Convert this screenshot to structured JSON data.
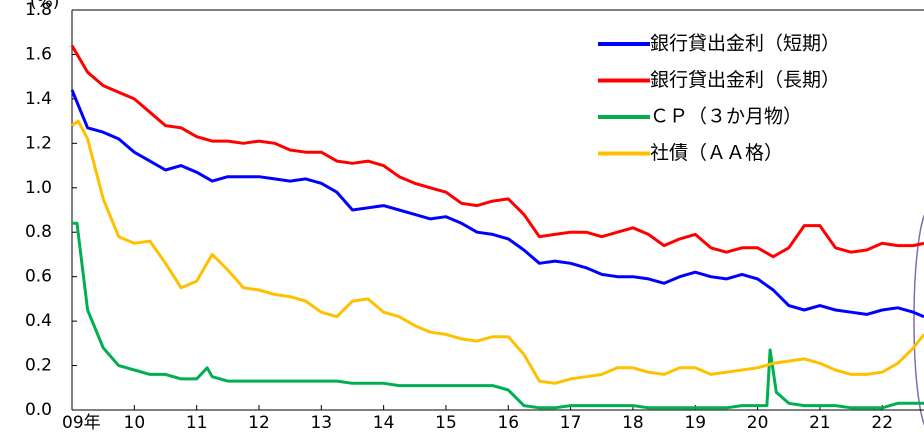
{
  "chart_data": {
    "type": "line",
    "y_label": "(%)",
    "xlim": [
      2009,
      2022.67
    ],
    "ylim": [
      0,
      1.8
    ],
    "yticks": [
      {
        "value": 0,
        "label": "0.0"
      },
      0.2,
      0.4,
      0.6,
      0.8,
      {
        "value": 1,
        "label": "1.0"
      },
      1.2,
      1.4,
      1.6,
      1.8
    ],
    "xticks": [
      {
        "value": 2009,
        "label": "09年"
      },
      {
        "value": 2010,
        "label": "10"
      },
      {
        "value": 2011,
        "label": "11"
      },
      {
        "value": 2012,
        "label": "12"
      },
      {
        "value": 2013,
        "label": "13"
      },
      {
        "value": 2014,
        "label": "14"
      },
      {
        "value": 2015,
        "label": "15"
      },
      {
        "value": 2016,
        "label": "16"
      },
      {
        "value": 2017,
        "label": "17"
      },
      {
        "value": 2018,
        "label": "18"
      },
      {
        "value": 2019,
        "label": "19"
      },
      {
        "value": 2020,
        "label": "20"
      },
      {
        "value": 2021,
        "label": "21"
      },
      {
        "value": 2022,
        "label": "22"
      }
    ],
    "legend": "upper right",
    "series": [
      {
        "name": "銀行貸出金利（短期）",
        "color": "#0000ff",
        "x": [
          2009,
          2009.25,
          2009.5,
          2009.75,
          2010,
          2010.25,
          2010.5,
          2010.75,
          2011,
          2011.25,
          2011.5,
          2011.75,
          2012,
          2012.25,
          2012.5,
          2012.75,
          2013,
          2013.25,
          2013.5,
          2013.75,
          2014,
          2014.25,
          2014.5,
          2014.75,
          2015,
          2015.25,
          2015.5,
          2015.75,
          2016,
          2016.25,
          2016.5,
          2016.75,
          2017,
          2017.25,
          2017.5,
          2017.75,
          2018,
          2018.25,
          2018.5,
          2018.75,
          2019,
          2019.25,
          2019.5,
          2019.75,
          2020,
          2020.25,
          2020.5,
          2020.75,
          2021,
          2021.25,
          2021.5,
          2021.75,
          2022,
          2022.25,
          2022.5,
          2022.67
        ],
        "values": [
          1.44,
          1.27,
          1.25,
          1.22,
          1.16,
          1.12,
          1.08,
          1.1,
          1.07,
          1.03,
          1.05,
          1.05,
          1.05,
          1.04,
          1.03,
          1.04,
          1.02,
          0.98,
          0.9,
          0.91,
          0.92,
          0.9,
          0.88,
          0.86,
          0.87,
          0.84,
          0.8,
          0.79,
          0.77,
          0.72,
          0.66,
          0.67,
          0.66,
          0.64,
          0.61,
          0.6,
          0.6,
          0.59,
          0.57,
          0.6,
          0.62,
          0.6,
          0.59,
          0.61,
          0.59,
          0.54,
          0.47,
          0.45,
          0.47,
          0.45,
          0.44,
          0.43,
          0.45,
          0.46,
          0.44,
          0.42
        ]
      },
      {
        "name": "銀行貸出金利（長期）",
        "color": "#ff0000",
        "x": [
          2009,
          2009.25,
          2009.5,
          2009.75,
          2010,
          2010.25,
          2010.5,
          2010.75,
          2011,
          2011.25,
          2011.5,
          2011.75,
          2012,
          2012.25,
          2012.5,
          2012.75,
          2013,
          2013.25,
          2013.5,
          2013.75,
          2014,
          2014.25,
          2014.5,
          2014.75,
          2015,
          2015.25,
          2015.5,
          2015.75,
          2016,
          2016.25,
          2016.5,
          2016.75,
          2017,
          2017.25,
          2017.5,
          2017.75,
          2018,
          2018.25,
          2018.5,
          2018.75,
          2019,
          2019.25,
          2019.5,
          2019.75,
          2020,
          2020.25,
          2020.5,
          2020.75,
          2021,
          2021.25,
          2021.5,
          2021.75,
          2022,
          2022.25,
          2022.5,
          2022.67
        ],
        "values": [
          1.64,
          1.52,
          1.46,
          1.43,
          1.4,
          1.34,
          1.28,
          1.27,
          1.23,
          1.21,
          1.21,
          1.2,
          1.21,
          1.2,
          1.17,
          1.16,
          1.16,
          1.12,
          1.11,
          1.12,
          1.1,
          1.05,
          1.02,
          1.0,
          0.98,
          0.93,
          0.92,
          0.94,
          0.95,
          0.88,
          0.78,
          0.79,
          0.8,
          0.8,
          0.78,
          0.8,
          0.82,
          0.79,
          0.74,
          0.77,
          0.79,
          0.73,
          0.71,
          0.73,
          0.73,
          0.69,
          0.73,
          0.83,
          0.83,
          0.73,
          0.71,
          0.72,
          0.75,
          0.74,
          0.74,
          0.75
        ]
      },
      {
        "name": "ＣＰ（３か月物）",
        "color": "#00b050",
        "x": [
          2009,
          2009.08,
          2009.25,
          2009.5,
          2009.75,
          2010,
          2010.25,
          2010.5,
          2010.75,
          2011,
          2011.17,
          2011.25,
          2011.5,
          2011.75,
          2012,
          2012.25,
          2012.5,
          2012.75,
          2013,
          2013.25,
          2013.5,
          2013.75,
          2014,
          2014.25,
          2014.5,
          2014.75,
          2015,
          2015.25,
          2015.5,
          2015.75,
          2016,
          2016.25,
          2016.5,
          2016.75,
          2017,
          2017.25,
          2017.5,
          2017.75,
          2018,
          2018.25,
          2018.5,
          2018.75,
          2019,
          2019.25,
          2019.5,
          2019.75,
          2020,
          2020.15,
          2020.2,
          2020.3,
          2020.5,
          2020.75,
          2021,
          2021.25,
          2021.5,
          2021.75,
          2022,
          2022.25,
          2022.5,
          2022.67
        ],
        "values": [
          0.84,
          0.84,
          0.45,
          0.28,
          0.2,
          0.18,
          0.16,
          0.16,
          0.14,
          0.14,
          0.19,
          0.15,
          0.13,
          0.13,
          0.13,
          0.13,
          0.13,
          0.13,
          0.13,
          0.13,
          0.12,
          0.12,
          0.12,
          0.11,
          0.11,
          0.11,
          0.11,
          0.11,
          0.11,
          0.11,
          0.09,
          0.02,
          0.01,
          0.01,
          0.02,
          0.02,
          0.02,
          0.02,
          0.02,
          0.01,
          0.01,
          0.01,
          0.01,
          0.01,
          0.01,
          0.02,
          0.02,
          0.02,
          0.27,
          0.08,
          0.03,
          0.02,
          0.02,
          0.02,
          0.01,
          0.01,
          0.01,
          0.03,
          0.03,
          0.03
        ]
      },
      {
        "name": "社債（ＡＡ格）",
        "color": "#ffc000",
        "x": [
          2009,
          2009.1,
          2009.25,
          2009.5,
          2009.75,
          2010,
          2010.25,
          2010.5,
          2010.75,
          2011,
          2011.25,
          2011.5,
          2011.75,
          2012,
          2012.25,
          2012.5,
          2012.75,
          2013,
          2013.25,
          2013.5,
          2013.75,
          2014,
          2014.25,
          2014.5,
          2014.75,
          2015,
          2015.25,
          2015.5,
          2015.75,
          2016,
          2016.25,
          2016.5,
          2016.75,
          2017,
          2017.25,
          2017.5,
          2017.75,
          2018,
          2018.25,
          2018.5,
          2018.75,
          2019,
          2019.25,
          2019.5,
          2019.75,
          2020,
          2020.25,
          2020.5,
          2020.75,
          2021,
          2021.25,
          2021.5,
          2021.75,
          2022,
          2022.25,
          2022.5,
          2022.67
        ],
        "values": [
          1.28,
          1.3,
          1.22,
          0.95,
          0.78,
          0.75,
          0.76,
          0.66,
          0.55,
          0.58,
          0.7,
          0.63,
          0.55,
          0.54,
          0.52,
          0.51,
          0.49,
          0.44,
          0.42,
          0.49,
          0.5,
          0.44,
          0.42,
          0.38,
          0.35,
          0.34,
          0.32,
          0.31,
          0.33,
          0.33,
          0.25,
          0.13,
          0.12,
          0.14,
          0.15,
          0.16,
          0.19,
          0.19,
          0.17,
          0.16,
          0.19,
          0.19,
          0.16,
          0.17,
          0.18,
          0.19,
          0.21,
          0.22,
          0.23,
          0.21,
          0.18,
          0.16,
          0.16,
          0.17,
          0.21,
          0.28,
          0.34
        ]
      }
    ]
  }
}
